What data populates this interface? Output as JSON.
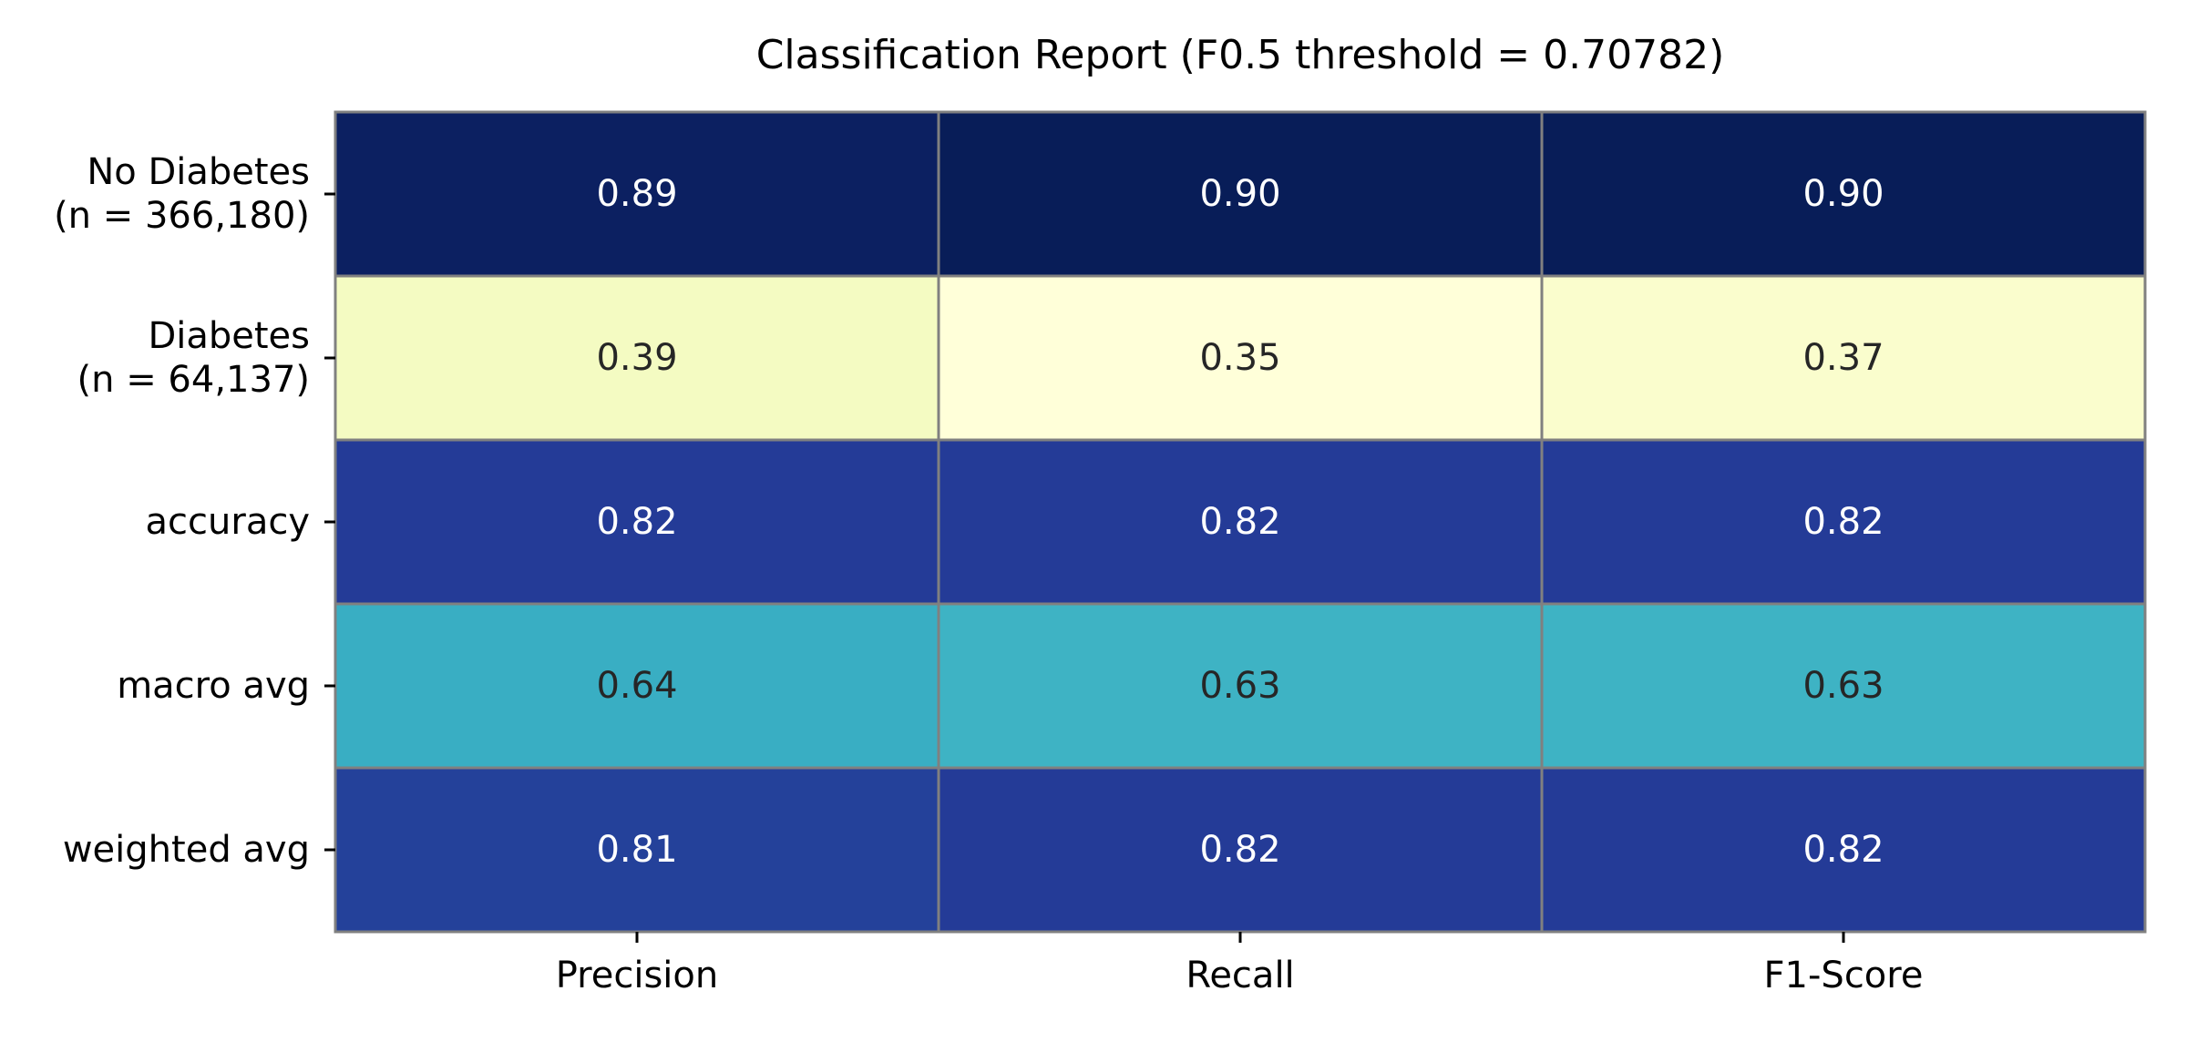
{
  "chart_data": {
    "type": "heatmap",
    "title": "Classification Report (F0.5 threshold = 0.70782)",
    "columns": [
      "Precision",
      "Recall",
      "F1-Score"
    ],
    "rows": [
      [
        "No Diabetes",
        "(n = 366,180)"
      ],
      [
        "Diabetes",
        "(n = 64,137)"
      ],
      [
        "accuracy"
      ],
      [
        "macro avg"
      ],
      [
        "weighted avg"
      ]
    ],
    "values": [
      [
        0.89,
        0.9,
        0.9
      ],
      [
        0.39,
        0.35,
        0.37
      ],
      [
        0.82,
        0.82,
        0.82
      ],
      [
        0.64,
        0.63,
        0.63
      ],
      [
        0.81,
        0.82,
        0.82
      ]
    ],
    "value_format": "0.00",
    "colormap": "YlGnBu",
    "colorbar": false,
    "cell_border_color": "#808080",
    "text_color_dark_cells": "#ffffff",
    "text_color_light_cells": "#262626"
  }
}
